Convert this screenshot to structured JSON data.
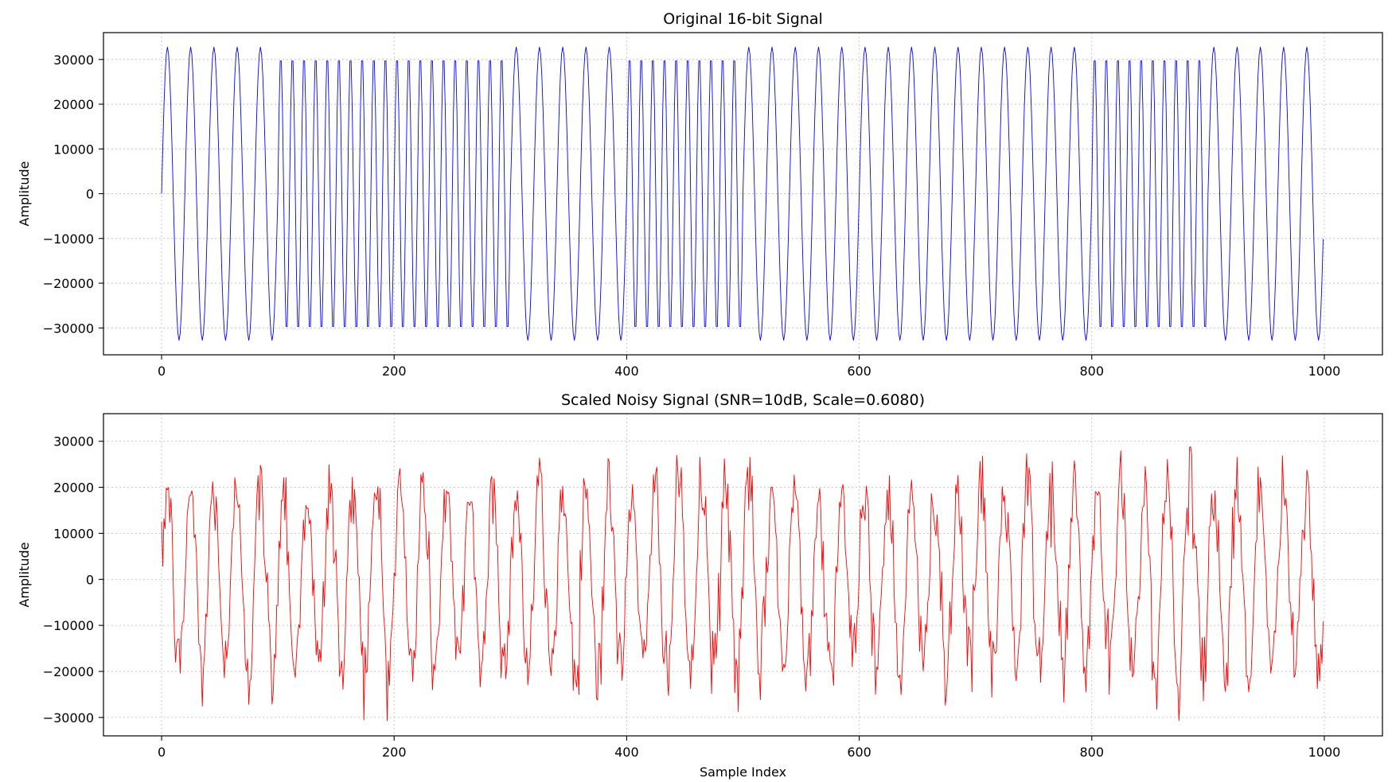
{
  "chart_data": [
    {
      "type": "line",
      "title": "Original 16-bit Signal",
      "xlabel": "",
      "ylabel": "Amplitude",
      "xlim": [
        -50,
        1050
      ],
      "ylim": [
        -36000,
        36000
      ],
      "xticks": [
        0,
        200,
        400,
        600,
        800,
        1000
      ],
      "xtick_labels": [
        "0",
        "200",
        "400",
        "600",
        "800",
        "1000"
      ],
      "yticks": [
        -30000,
        -20000,
        -10000,
        0,
        10000,
        20000,
        30000
      ],
      "ytick_labels": [
        "−30000",
        "−20000",
        "−10000",
        "0",
        "10000",
        "20000",
        "30000"
      ],
      "grid": true,
      "series": [
        {
          "color": "#0000ff",
          "n_samples": 1000,
          "segments": [
            {
              "start": 0,
              "end": 100,
              "cycles_per_sample": 0.05,
              "amplitude": 32767
            },
            {
              "start": 100,
              "end": 300,
              "cycles_per_sample": 0.1,
              "amplitude": 31200
            },
            {
              "start": 300,
              "end": 400,
              "cycles_per_sample": 0.05,
              "amplitude": 32767
            },
            {
              "start": 400,
              "end": 500,
              "cycles_per_sample": 0.1,
              "amplitude": 31200
            },
            {
              "start": 500,
              "end": 800,
              "cycles_per_sample": 0.05,
              "amplitude": 32767
            },
            {
              "start": 800,
              "end": 900,
              "cycles_per_sample": 0.1,
              "amplitude": 31200
            },
            {
              "start": 900,
              "end": 1000,
              "cycles_per_sample": 0.05,
              "amplitude": 32767
            }
          ]
        }
      ]
    },
    {
      "type": "line",
      "title": "Scaled Noisy Signal (SNR=10dB, Scale=0.6080)",
      "xlabel": "Sample Index",
      "ylabel": "Amplitude",
      "xlim": [
        -50,
        1050
      ],
      "ylim": [
        -34000,
        36000
      ],
      "xticks": [
        0,
        200,
        400,
        600,
        800,
        1000
      ],
      "xtick_labels": [
        "0",
        "200",
        "400",
        "600",
        "800",
        "1000"
      ],
      "yticks": [
        -30000,
        -20000,
        -10000,
        0,
        10000,
        20000,
        30000
      ],
      "ytick_labels": [
        "−30000",
        "−20000",
        "−10000",
        "0",
        "10000",
        "20000",
        "30000"
      ],
      "grid": true,
      "series": [
        {
          "color": "#ff0000",
          "n_samples": 1000,
          "cycles_per_sample": 0.05,
          "amplitude": 19900,
          "noise_std": 4500,
          "min_value": -30700,
          "max_value": 32800
        }
      ]
    }
  ]
}
